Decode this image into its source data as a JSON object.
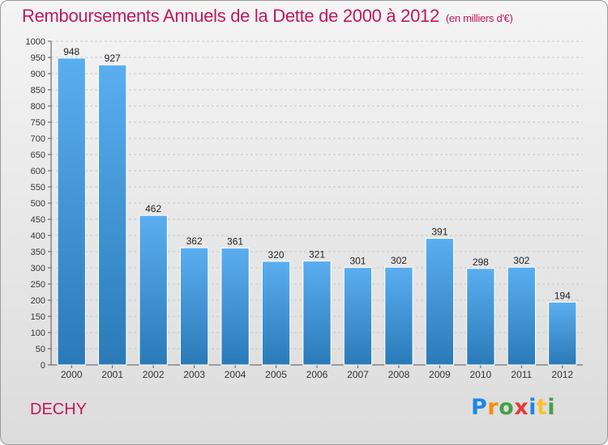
{
  "title": "Remboursements Annuels de la Dette de 2000 à 2012",
  "subtitle": "(en milliers d'€)",
  "location": "DECHY",
  "logo": {
    "letters": [
      {
        "ch": "P",
        "color": "#1e88e5"
      },
      {
        "ch": "r",
        "color": "#fb8c00"
      },
      {
        "ch": "o",
        "color": "#43a047"
      },
      {
        "ch": "x",
        "color": "#e53935"
      },
      {
        "ch": "i",
        "color": "#1e88e5"
      },
      {
        "ch": "t",
        "color": "#fbc02d"
      },
      {
        "ch": "i",
        "color": "#43a047"
      }
    ]
  },
  "colors": {
    "bar_light": "#5aaef0",
    "bar_dark": "#2a7ab8",
    "accent": "#c2185b"
  },
  "chart_data": {
    "type": "bar",
    "categories": [
      "2000",
      "2001",
      "2002",
      "2003",
      "2004",
      "2005",
      "2006",
      "2007",
      "2008",
      "2009",
      "2010",
      "2011",
      "2012"
    ],
    "values": [
      948,
      927,
      462,
      362,
      361,
      320,
      321,
      301,
      302,
      391,
      298,
      302,
      194
    ],
    "ylim": [
      0,
      1000
    ],
    "yticks": [
      0,
      50,
      100,
      150,
      200,
      250,
      300,
      350,
      400,
      450,
      500,
      550,
      600,
      650,
      700,
      750,
      800,
      850,
      900,
      950,
      1000
    ],
    "grid": true
  }
}
